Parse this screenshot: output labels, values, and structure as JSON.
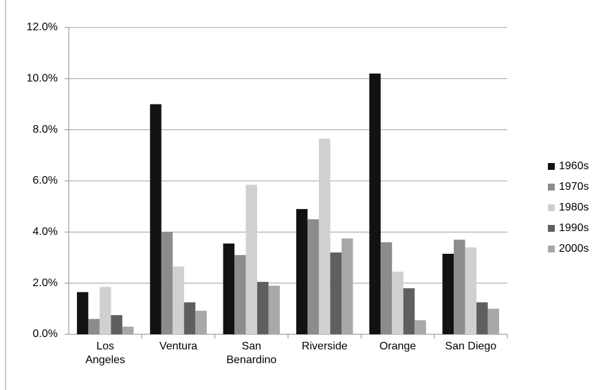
{
  "chart_data": {
    "type": "bar",
    "categories": [
      "Los Angeles",
      "Ventura",
      "San Benardino",
      "Riverside",
      "Orange",
      "San Diego"
    ],
    "series": [
      {
        "name": "1960s",
        "color": "#121212",
        "values": [
          1.65,
          9.0,
          3.55,
          4.9,
          10.2,
          3.15
        ]
      },
      {
        "name": "1970s",
        "color": "#8c8c8c",
        "values": [
          0.6,
          4.0,
          3.1,
          4.5,
          3.6,
          3.7
        ]
      },
      {
        "name": "1980s",
        "color": "#d0d0d0",
        "values": [
          1.85,
          2.65,
          5.85,
          7.65,
          2.45,
          3.4
        ]
      },
      {
        "name": "1990s",
        "color": "#5f5f5f",
        "values": [
          0.75,
          1.25,
          2.05,
          3.2,
          1.8,
          1.25
        ]
      },
      {
        "name": "2000s",
        "color": "#a8a8a8",
        "values": [
          0.3,
          0.92,
          1.9,
          3.75,
          0.55,
          1.0
        ]
      }
    ],
    "ylim": [
      0,
      12
    ],
    "yticks": [
      {
        "value": 0,
        "label": "0.0%"
      },
      {
        "value": 2,
        "label": "2.0%"
      },
      {
        "value": 4,
        "label": "4.0%"
      },
      {
        "value": 6,
        "label": "6.0%"
      },
      {
        "value": 8,
        "label": "8.0%"
      },
      {
        "value": 10,
        "label": "10.0%"
      },
      {
        "value": 12,
        "label": "12.0%"
      }
    ],
    "grid": true,
    "legend": "right"
  }
}
